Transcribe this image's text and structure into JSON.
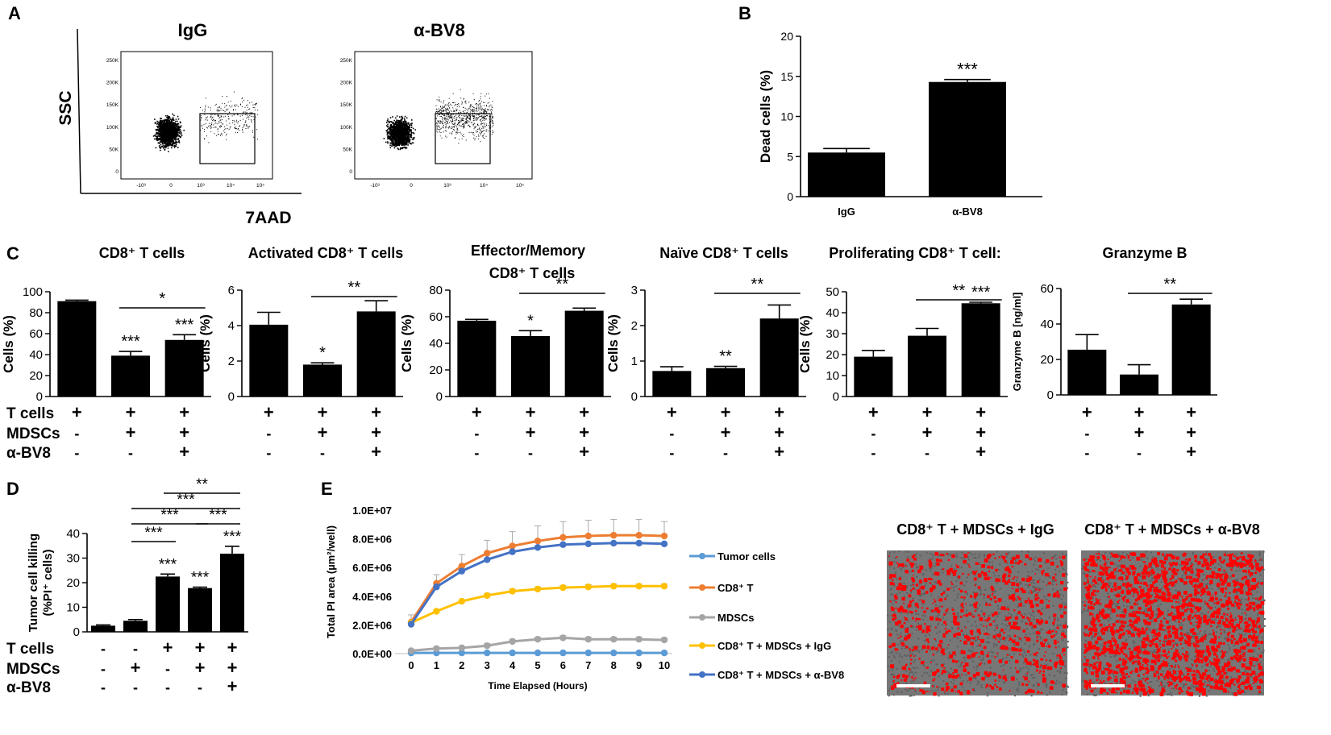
{
  "panel_labels": [
    "A",
    "B",
    "C",
    "D",
    "E"
  ],
  "colors": {
    "bar": "#000000",
    "tumor": "#5b9bd5",
    "cd8": "#ed7d31",
    "mdsc": "#a5a5a5",
    "igg": "#ffc000",
    "abv8": "#4472c4",
    "pi": "#ff0000",
    "gray": "#777777"
  },
  "panelA": {
    "y_label": "SSC",
    "x_label": "7AAD",
    "plots": [
      {
        "title": "IgG",
        "dead_fraction": 0.055
      },
      {
        "title": "α-BV8",
        "dead_fraction": 0.14
      }
    ],
    "y_ticks": [
      "250K",
      "200K",
      "150K",
      "100K",
      "50K",
      "0"
    ],
    "x_ticks": [
      "-10³",
      "0",
      "10³",
      "10⁴",
      "10⁵"
    ]
  },
  "chart_data": [
    {
      "id": "B",
      "type": "bar",
      "title": "",
      "categories": [
        "IgG",
        "α-BV8"
      ],
      "values": [
        5.5,
        14.3
      ],
      "errors": [
        0.5,
        0.3
      ],
      "ylabel": "Dead cells (%)",
      "ylim": [
        0,
        20
      ],
      "yticks": [
        "0",
        "5",
        "10",
        "15",
        "20"
      ],
      "annotations": [
        {
          "bar": 1,
          "text": "***"
        }
      ]
    },
    {
      "id": "C1",
      "type": "bar",
      "title": "CD8⁺ T cells",
      "ylabel": "Cells (%)",
      "ylim": [
        0,
        100
      ],
      "yticks": [
        "0",
        "20",
        "40",
        "60",
        "80",
        "100"
      ],
      "values": [
        91,
        39,
        54
      ],
      "errors": [
        1,
        4,
        5
      ],
      "stars": [
        "",
        "***",
        "***"
      ],
      "brackets": [
        {
          "from": 1,
          "to": 2,
          "text": "*"
        }
      ]
    },
    {
      "id": "C2",
      "type": "bar",
      "title": "Activated CD8⁺ T cells",
      "ylabel": "Cells (%)",
      "ylim": [
        0,
        6
      ],
      "yticks": [
        "0",
        "2",
        "4",
        "6"
      ],
      "values": [
        4.05,
        1.8,
        4.8
      ],
      "errors": [
        0.7,
        0.1,
        0.6
      ],
      "stars": [
        "",
        "*",
        ""
      ],
      "brackets": [
        {
          "from": 1,
          "to": 2,
          "text": "**"
        }
      ]
    },
    {
      "id": "C3",
      "type": "bar",
      "title": "Effector/Memory",
      "title2": "CD8⁺ T cells",
      "ylabel": "Cells (%)",
      "ylim": [
        0,
        80
      ],
      "yticks": [
        "0",
        "20",
        "40",
        "60",
        "80"
      ],
      "values": [
        57,
        45.5,
        64.5
      ],
      "errors": [
        1,
        4,
        2
      ],
      "stars": [
        "",
        "*",
        ""
      ],
      "brackets": [
        {
          "from": 1,
          "to": 2,
          "text": "**"
        }
      ]
    },
    {
      "id": "C4",
      "type": "bar",
      "title": "Naïve CD8⁺ T cells",
      "ylabel": "Cells (%)",
      "ylim": [
        0,
        3
      ],
      "yticks": [
        "0",
        "1",
        "2",
        "3"
      ],
      "values": [
        0.72,
        0.8,
        2.2
      ],
      "errors": [
        0.12,
        0.05,
        0.38
      ],
      "stars": [
        "",
        "**",
        ""
      ],
      "brackets": [
        {
          "from": 1,
          "to": 2,
          "text": "**"
        }
      ]
    },
    {
      "id": "C5",
      "type": "bar",
      "title": "Proliferating  CD8⁺ T cell:",
      "ylabel": "Cells (%)",
      "ylim": [
        0,
        50
      ],
      "yticks": [
        "0",
        "10",
        "20",
        "30",
        "40",
        "50"
      ],
      "values": [
        19,
        29,
        44.5
      ],
      "errors": [
        3,
        3.5,
        0.5
      ],
      "stars": [
        "",
        "",
        "***"
      ],
      "brackets": [
        {
          "from": 1,
          "to": 2,
          "text": "**"
        }
      ]
    },
    {
      "id": "C6",
      "type": "bar",
      "title": "Granzyme B",
      "ylabel": "Granzyme B [ng/ml]",
      "ylim": [
        0,
        60
      ],
      "yticks": [
        "0",
        "20",
        "40",
        "60"
      ],
      "values": [
        25.5,
        11.5,
        51
      ],
      "errors": [
        8.5,
        5.5,
        3
      ],
      "stars": [
        "",
        "",
        ""
      ],
      "brackets": [
        {
          "from": 1,
          "to": 2,
          "text": "**"
        }
      ]
    },
    {
      "id": "D",
      "type": "bar",
      "title": "",
      "ylabel": "Tumor cell killing",
      "ylabel2": "(%PI⁺ cells)",
      "ylim": [
        0,
        40
      ],
      "yticks": [
        "0",
        "10",
        "20",
        "30",
        "40"
      ],
      "values": [
        2.5,
        4.5,
        22.5,
        17.8,
        31.8
      ],
      "errors": [
        0.3,
        0.5,
        1,
        0.4,
        3
      ],
      "stars": [
        "",
        "",
        "***",
        "***",
        "***"
      ],
      "brackets": [
        {
          "from": 1,
          "to": 2,
          "text": "***",
          "level": 0
        },
        {
          "from": 3,
          "to": 4,
          "text": "***",
          "level": 1
        },
        {
          "from": 1,
          "to": 3,
          "text": "***",
          "level": 1
        },
        {
          "from": 1,
          "to": 4,
          "text": "***",
          "level": 2
        },
        {
          "from": 2,
          "to": 4,
          "text": "**",
          "level": 3
        }
      ],
      "treatment_rows": [
        {
          "label": "T cells",
          "signs": [
            "-",
            "-",
            "+",
            "+",
            "+"
          ]
        },
        {
          "label": "MDSCs",
          "signs": [
            "-",
            "+",
            "-",
            "+",
            "+"
          ]
        },
        {
          "label": "α-BV8",
          "signs": [
            "-",
            "-",
            "-",
            "-",
            "+"
          ]
        }
      ]
    },
    {
      "id": "E",
      "type": "line",
      "title": "",
      "x": [
        0,
        1,
        2,
        3,
        4,
        5,
        6,
        7,
        8,
        9,
        10
      ],
      "xlabel": "Time Elapsed  (Hours)",
      "ylabel": "Total PI area (µm²/well)",
      "ylim": [
        0,
        10000000
      ],
      "yticks": [
        "0.0E+00",
        "2.0E+06",
        "4.0E+06",
        "6.0E+06",
        "8.0E+06",
        "1.0E+07"
      ],
      "xticks": [
        "0",
        "1",
        "2",
        "3",
        "4",
        "5",
        "6",
        "7",
        "8",
        "9",
        "10"
      ],
      "series": [
        {
          "name": "Tumor cells",
          "color": "#5b9bd5",
          "values": [
            50000,
            50000,
            50000,
            50000,
            50000,
            50000,
            50000,
            50000,
            50000,
            50000,
            50000
          ],
          "errors": [
            0,
            0,
            0,
            0,
            0,
            0,
            0,
            0,
            0,
            0,
            0
          ]
        },
        {
          "name": "CD8⁺ T",
          "color": "#ed7d31",
          "values": [
            2200000,
            4900000,
            6100000,
            7000000,
            7500000,
            7850000,
            8100000,
            8200000,
            8250000,
            8250000,
            8200000
          ],
          "errors": [
            500000,
            600000,
            800000,
            900000,
            1000000,
            1050000,
            1100000,
            1100000,
            1100000,
            1100000,
            1000000
          ]
        },
        {
          "name": "MDSCs",
          "color": "#a5a5a5",
          "values": [
            200000,
            350000,
            400000,
            550000,
            850000,
            1000000,
            1100000,
            1000000,
            1000000,
            1000000,
            950000
          ],
          "errors": [
            100000,
            100000,
            100000,
            150000,
            150000,
            150000,
            150000,
            150000,
            150000,
            150000,
            150000
          ]
        },
        {
          "name": "CD8⁺ T + MDSCs + IgG",
          "color": "#ffc000",
          "values": [
            2150000,
            2950000,
            3650000,
            4050000,
            4350000,
            4500000,
            4600000,
            4650000,
            4700000,
            4700000,
            4700000
          ],
          "errors": [
            100000,
            100000,
            100000,
            150000,
            150000,
            150000,
            150000,
            150000,
            150000,
            150000,
            150000
          ]
        },
        {
          "name": "CD8⁺ T + MDSCs + α-BV8",
          "color": "#4472c4",
          "values": [
            2050000,
            4650000,
            5750000,
            6550000,
            7100000,
            7400000,
            7600000,
            7650000,
            7700000,
            7700000,
            7650000
          ],
          "errors": [
            0,
            0,
            0,
            0,
            0,
            0,
            0,
            0,
            0,
            0,
            0
          ]
        }
      ]
    }
  ],
  "treatments_C": [
    {
      "label": "T cells",
      "signs": [
        "+",
        "+",
        "+"
      ]
    },
    {
      "label": "MDSCs",
      "signs": [
        "-",
        "+",
        "+"
      ]
    },
    {
      "label": "α-BV8",
      "signs": [
        "-",
        "-",
        "+"
      ]
    }
  ],
  "legend_E": [
    {
      "name": "Tumor cells",
      "color": "#5b9bd5"
    },
    {
      "name": "CD8⁺ T",
      "color": "#ed7d31"
    },
    {
      "name": "MDSCs",
      "color": "#a5a5a5"
    },
    {
      "name": "CD8⁺ T + MDSCs + IgG",
      "color": "#ffc000"
    },
    {
      "name": "CD8⁺ T + MDSCs + α-BV8",
      "color": "#4472c4"
    }
  ],
  "images_E": [
    {
      "title": "CD8⁺ T + MDSCs + IgG",
      "density": 0.18
    },
    {
      "title": "CD8⁺ T + MDSCs + α-BV8",
      "density": 0.42
    }
  ]
}
